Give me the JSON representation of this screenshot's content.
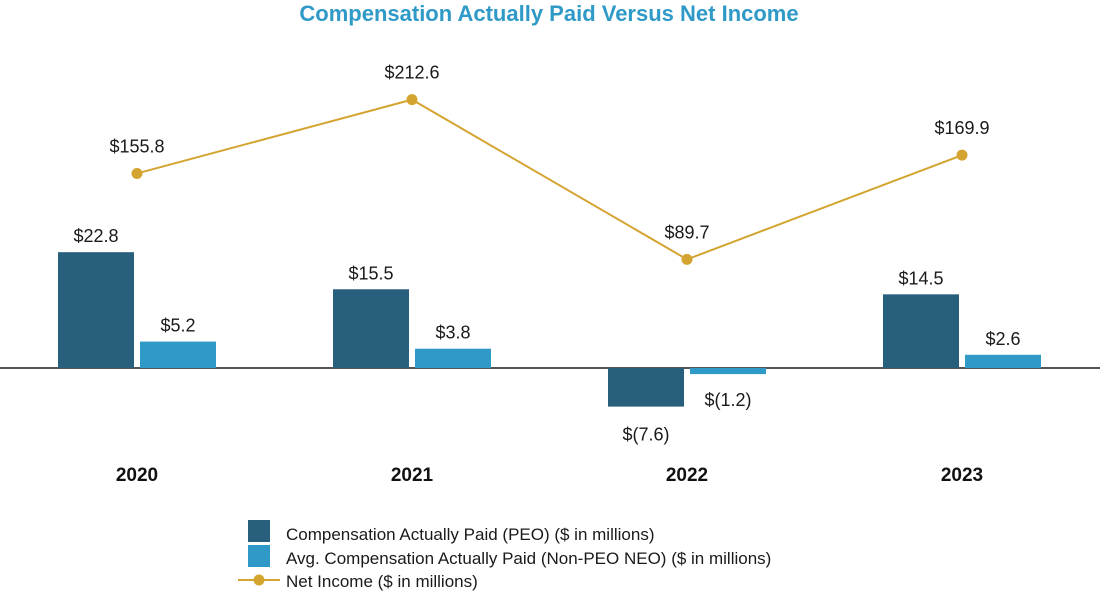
{
  "chart_data": {
    "type": "bar",
    "title": "Compensation Actually Paid Versus Net Income",
    "categories": [
      "2020",
      "2021",
      "2022",
      "2023"
    ],
    "series": [
      {
        "name": "Compensation Actually Paid (PEO) ($ in millions)",
        "kind": "bar",
        "color": "#285f7c",
        "values": [
          22.8,
          15.5,
          -7.6,
          14.5
        ],
        "labels": [
          "$22.8",
          "$15.5",
          "$(7.6)",
          "$14.5"
        ]
      },
      {
        "name": "Avg. Compensation Actually Paid (Non-PEO NEO) ($ in millions)",
        "kind": "bar",
        "color": "#2f9ac7",
        "values": [
          5.2,
          3.8,
          -1.2,
          2.6
        ],
        "labels": [
          "$5.2",
          "$3.8",
          "$(1.2)",
          "$2.6"
        ]
      },
      {
        "name": "Net Income ($ in millions)",
        "kind": "line",
        "color": "#d4a431",
        "values": [
          155.8,
          212.6,
          89.7,
          169.9
        ],
        "labels": [
          "$155.8",
          "$212.6",
          "$89.7",
          "$169.9"
        ]
      }
    ],
    "bar_axis_range": [
      -10,
      30
    ],
    "line_axis_range": [
      0,
      260
    ],
    "grid": false,
    "legend_position": "bottom"
  },
  "colors": {
    "title": "#2f9ac7",
    "axis_line": "#555555"
  }
}
